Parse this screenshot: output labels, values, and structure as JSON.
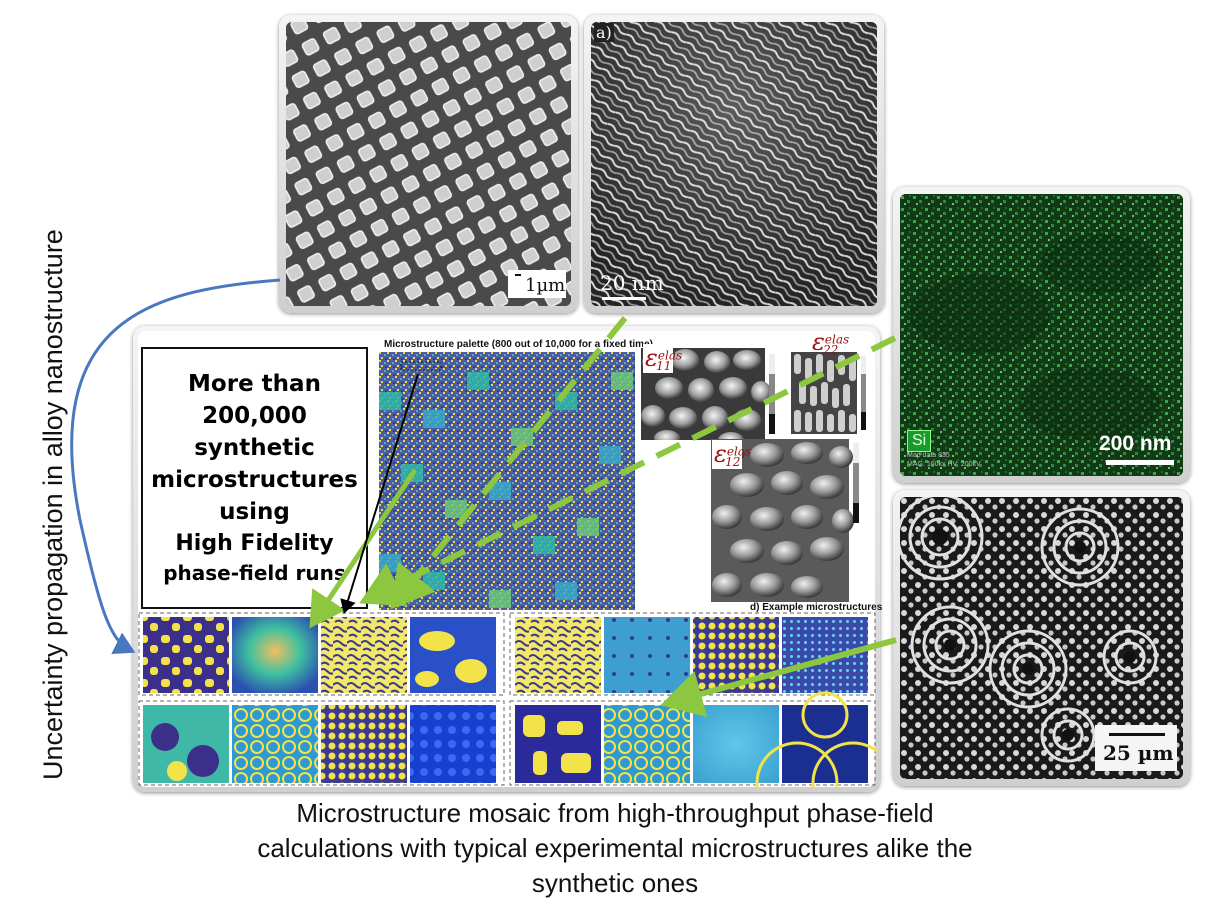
{
  "side_label": "Uncertainty propagation in alloy nanostructure",
  "caption": {
    "line1": "Microstructure mosaic from high-throughput phase-field",
    "line2": "calculations with typical experimental microstructures alike the",
    "line3": "synthetic ones"
  },
  "highlight_box": {
    "line1": "More than",
    "line2": "200,000",
    "line3": "synthetic",
    "line4": "microstructures",
    "line5": "using",
    "line6": "High Fidelity",
    "line7": "phase-field runs"
  },
  "palette_title": "Microstructure palette (800 out of 10,000 for a fixed time)",
  "example_label": "d) Example microstructures",
  "strain_labels": {
    "e11_base": "ε",
    "e11_sup": "elas",
    "e11_sub": "11",
    "e22_base": "ε",
    "e22_sup": "elas",
    "e22_sub": "22",
    "e12_base": "ε",
    "e12_sup": "elas",
    "e12_sub": "12"
  },
  "micrographs": {
    "sem_scale": "1µm",
    "tem_panel_label": "a)",
    "tem_scale": "20 nm",
    "eds_element": "Si",
    "eds_scale": "200 nm",
    "eds_meta": "Map data 835",
    "eds_meta2": "MAG: 160kx  HV: 200kV",
    "spinodal_scale": "25 µm"
  },
  "colors": {
    "arrow_green": "#8dc63f",
    "arrow_blue": "#4a78c0",
    "strain_label": "#9b1010"
  }
}
